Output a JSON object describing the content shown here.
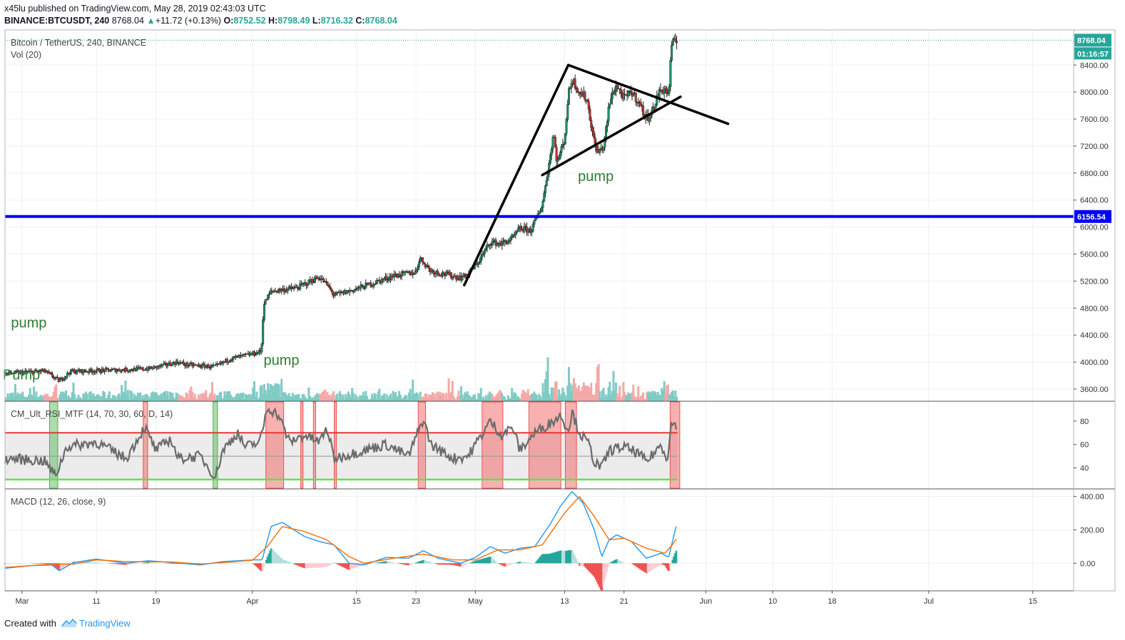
{
  "header": {
    "author": "x45lu",
    "published_text": "published on TradingView.com, May 28, 2019 02:43:03 UTC",
    "symbol_line": "BINANCE:BTCUSDT, 240",
    "last": "8768.04",
    "change": "+11.72 (+0.13%)",
    "o_label": "O:",
    "o_value": "8752.52",
    "h_label": "H:",
    "h_value": "8798.49",
    "l_label": "L:",
    "l_value": "8716.32",
    "c_label": "C:",
    "c_value": "8768.04"
  },
  "footer": {
    "created_with": "Created with",
    "logo_text": "TradingView"
  },
  "chart_data": {
    "type": "candlestick",
    "title": "Bitcoin / TetherUS, 240, BINANCE",
    "volume_label": "Vol (20)",
    "price_axis": {
      "ticks": [
        3600,
        4000,
        4400,
        4800,
        5200,
        5600,
        6000,
        6400,
        6800,
        7200,
        7600,
        8000,
        8400
      ],
      "tick_labels": [
        "3600.00",
        "4000.00",
        "4400.00",
        "4800.00",
        "5200.00",
        "5600.00",
        "6000.00",
        "6400.00",
        "6800.00",
        "7200.00",
        "7600.00",
        "8000.00",
        "8400.00"
      ],
      "range": [
        3420,
        8920
      ]
    },
    "last_price": {
      "label": "8768.04",
      "value": 8768.04,
      "countdown": "01:16:57",
      "color": "#26a69a"
    },
    "horizontal_line": {
      "value": 6156.54,
      "label": "6156.54",
      "color": "#0000ff"
    },
    "time_axis": {
      "ticks": [
        {
          "label": "Mar",
          "day": 0
        },
        {
          "label": "11",
          "day": 10
        },
        {
          "label": "19",
          "day": 18
        },
        {
          "label": "Apr",
          "day": 31
        },
        {
          "label": "15",
          "day": 45
        },
        {
          "label": "23",
          "day": 53
        },
        {
          "label": "May",
          "day": 61
        },
        {
          "label": "13",
          "day": 73
        },
        {
          "label": "21",
          "day": 81
        },
        {
          "label": "Jun",
          "day": 92
        },
        {
          "label": "10",
          "day": 101
        },
        {
          "label": "18",
          "day": 109
        },
        {
          "label": "Jul",
          "day": 122
        },
        {
          "label": "15",
          "day": 136
        }
      ],
      "range_days": [
        -2.3,
        141.5
      ]
    },
    "candle_interval": "4h",
    "key_prices": [
      {
        "day": -2.3,
        "price": 3830
      },
      {
        "day": 3,
        "price": 3870
      },
      {
        "day": 5,
        "price": 3720
      },
      {
        "day": 6.5,
        "price": 3860
      },
      {
        "day": 12,
        "price": 3880
      },
      {
        "day": 17,
        "price": 3900
      },
      {
        "day": 21,
        "price": 4000
      },
      {
        "day": 22,
        "price": 3960
      },
      {
        "day": 26,
        "price": 3930
      },
      {
        "day": 28,
        "price": 4050
      },
      {
        "day": 31,
        "price": 4120
      },
      {
        "day": 32.2,
        "price": 4160
      },
      {
        "day": 32.5,
        "price": 4850
      },
      {
        "day": 33.5,
        "price": 5050
      },
      {
        "day": 37,
        "price": 5100
      },
      {
        "day": 40,
        "price": 5260
      },
      {
        "day": 41,
        "price": 5150
      },
      {
        "day": 42,
        "price": 4990
      },
      {
        "day": 44,
        "price": 5050
      },
      {
        "day": 47,
        "price": 5160
      },
      {
        "day": 50,
        "price": 5280
      },
      {
        "day": 53,
        "price": 5330
      },
      {
        "day": 53.5,
        "price": 5550
      },
      {
        "day": 55,
        "price": 5350
      },
      {
        "day": 57,
        "price": 5300
      },
      {
        "day": 59,
        "price": 5250
      },
      {
        "day": 60,
        "price": 5300
      },
      {
        "day": 61.5,
        "price": 5500
      },
      {
        "day": 63,
        "price": 5780
      },
      {
        "day": 64.5,
        "price": 5750
      },
      {
        "day": 66,
        "price": 5830
      },
      {
        "day": 67,
        "price": 5980
      },
      {
        "day": 68.5,
        "price": 5950
      },
      {
        "day": 69.5,
        "price": 6200
      },
      {
        "day": 70,
        "price": 6330
      },
      {
        "day": 71,
        "price": 7000
      },
      {
        "day": 71.5,
        "price": 7400
      },
      {
        "day": 72,
        "price": 6950
      },
      {
        "day": 73,
        "price": 7300
      },
      {
        "day": 73.5,
        "price": 7950
      },
      {
        "day": 74,
        "price": 8200
      },
      {
        "day": 75,
        "price": 8000
      },
      {
        "day": 76,
        "price": 7900
      },
      {
        "day": 77,
        "price": 7250
      },
      {
        "day": 77.5,
        "price": 7100
      },
      {
        "day": 78.3,
        "price": 7200
      },
      {
        "day": 79,
        "price": 7800
      },
      {
        "day": 79.5,
        "price": 8000
      },
      {
        "day": 80,
        "price": 8100
      },
      {
        "day": 81,
        "price": 7900
      },
      {
        "day": 82,
        "price": 8000
      },
      {
        "day": 83,
        "price": 7850
      },
      {
        "day": 84,
        "price": 7600
      },
      {
        "day": 85,
        "price": 7750
      },
      {
        "day": 85.7,
        "price": 8000
      },
      {
        "day": 86.5,
        "price": 8050
      },
      {
        "day": 87,
        "price": 7950
      },
      {
        "day": 87.4,
        "price": 8700
      },
      {
        "day": 88.2,
        "price": 8768
      }
    ],
    "annotations": [
      {
        "text": "pump",
        "day": -1.5,
        "price": 4510
      },
      {
        "text": "Pump",
        "day": -2.6,
        "price": 3740
      },
      {
        "text": "pump",
        "day": 32.5,
        "price": 3960
      },
      {
        "text": "pump",
        "day": 74.8,
        "price": 6680
      }
    ],
    "trendlines": [
      {
        "from": {
          "day": 59.5,
          "price": 5140
        },
        "to": {
          "day": 73.5,
          "price": 8400
        }
      },
      {
        "from": {
          "day": 73.5,
          "price": 8400
        },
        "to": {
          "day": 95,
          "price": 7530
        }
      },
      {
        "from": {
          "day": 70,
          "price": 6770
        },
        "to": {
          "day": 88.6,
          "price": 7930
        }
      }
    ],
    "rsi": {
      "label": "CM_Ult_RSI_MTF (14, 70, 30, 60, D, 14)",
      "range": [
        22,
        97
      ],
      "ticks": [
        40,
        60,
        80
      ],
      "tick_labels": [
        "40",
        "60",
        "80"
      ],
      "overbought": 70,
      "oversold": 30,
      "midline": 50,
      "key_values": [
        {
          "day": -2.3,
          "v": 48
        },
        {
          "day": 3,
          "v": 46
        },
        {
          "day": 4.5,
          "v": 33
        },
        {
          "day": 6,
          "v": 58
        },
        {
          "day": 10,
          "v": 62
        },
        {
          "day": 14,
          "v": 48
        },
        {
          "day": 16.5,
          "v": 75
        },
        {
          "day": 18,
          "v": 55
        },
        {
          "day": 20,
          "v": 65
        },
        {
          "day": 21,
          "v": 48
        },
        {
          "day": 24,
          "v": 50
        },
        {
          "day": 26,
          "v": 32
        },
        {
          "day": 27,
          "v": 55
        },
        {
          "day": 29,
          "v": 70
        },
        {
          "day": 30,
          "v": 58
        },
        {
          "day": 32,
          "v": 62
        },
        {
          "day": 33,
          "v": 92
        },
        {
          "day": 34.5,
          "v": 85
        },
        {
          "day": 36,
          "v": 62
        },
        {
          "day": 38,
          "v": 68
        },
        {
          "day": 40,
          "v": 62
        },
        {
          "day": 41,
          "v": 74
        },
        {
          "day": 42,
          "v": 48
        },
        {
          "day": 46,
          "v": 55
        },
        {
          "day": 49,
          "v": 60
        },
        {
          "day": 52,
          "v": 50
        },
        {
          "day": 54,
          "v": 82
        },
        {
          "day": 55,
          "v": 60
        },
        {
          "day": 58,
          "v": 48
        },
        {
          "day": 60,
          "v": 50
        },
        {
          "day": 62,
          "v": 70
        },
        {
          "day": 63,
          "v": 80
        },
        {
          "day": 64.5,
          "v": 68
        },
        {
          "day": 66,
          "v": 75
        },
        {
          "day": 67,
          "v": 55
        },
        {
          "day": 69,
          "v": 70
        },
        {
          "day": 71,
          "v": 78
        },
        {
          "day": 72.5,
          "v": 85
        },
        {
          "day": 73.5,
          "v": 72
        },
        {
          "day": 74,
          "v": 88
        },
        {
          "day": 75,
          "v": 70
        },
        {
          "day": 76.3,
          "v": 60
        },
        {
          "day": 77,
          "v": 45
        },
        {
          "day": 78,
          "v": 40
        },
        {
          "day": 79,
          "v": 55
        },
        {
          "day": 81,
          "v": 58
        },
        {
          "day": 83,
          "v": 52
        },
        {
          "day": 84,
          "v": 45
        },
        {
          "day": 86,
          "v": 60
        },
        {
          "day": 86.8,
          "v": 48
        },
        {
          "day": 87.4,
          "v": 78
        },
        {
          "day": 88.2,
          "v": 77
        }
      ],
      "overbought_zones": [
        [
          16.3,
          16.9
        ],
        [
          32.8,
          35.2
        ],
        [
          37.5,
          37.8
        ],
        [
          39.2,
          39.5
        ],
        [
          42.0,
          42.3
        ],
        [
          53.3,
          54.3
        ],
        [
          61.9,
          64.7
        ],
        [
          68.2,
          72.5
        ],
        [
          73.1,
          74.6
        ],
        [
          87.2,
          88.5
        ]
      ],
      "oversold_zones": [
        [
          3.7,
          4.8
        ],
        [
          25.7,
          26.3
        ]
      ],
      "colors": {
        "overbought": "#ef5350",
        "oversold": "#4caf50",
        "line": "#6b6b6b",
        "band": "#dcdcdc"
      }
    },
    "macd": {
      "label": "MACD (12, 26, close, 9)",
      "range": [
        -165,
        445
      ],
      "ticks": [
        0,
        200,
        400
      ],
      "tick_labels": [
        "0.00",
        "200.00",
        "400.00"
      ],
      "macd_key": [
        {
          "day": -2.3,
          "v": -30
        },
        {
          "day": 1,
          "v": -15
        },
        {
          "day": 4,
          "v": -10
        },
        {
          "day": 5,
          "v": -45
        },
        {
          "day": 7,
          "v": 5
        },
        {
          "day": 10,
          "v": 25
        },
        {
          "day": 14,
          "v": 0
        },
        {
          "day": 17,
          "v": 15
        },
        {
          "day": 20,
          "v": 5
        },
        {
          "day": 24,
          "v": -10
        },
        {
          "day": 27,
          "v": 10
        },
        {
          "day": 31,
          "v": 20
        },
        {
          "day": 32.3,
          "v": 20
        },
        {
          "day": 33.5,
          "v": 220
        },
        {
          "day": 35,
          "v": 245
        },
        {
          "day": 38,
          "v": 160
        },
        {
          "day": 40,
          "v": 130
        },
        {
          "day": 42,
          "v": 110
        },
        {
          "day": 44,
          "v": 0
        },
        {
          "day": 46,
          "v": -10
        },
        {
          "day": 49,
          "v": 35
        },
        {
          "day": 52,
          "v": 30
        },
        {
          "day": 54,
          "v": 75
        },
        {
          "day": 56,
          "v": 30
        },
        {
          "day": 59,
          "v": 0
        },
        {
          "day": 61,
          "v": 35
        },
        {
          "day": 63,
          "v": 100
        },
        {
          "day": 65,
          "v": 60
        },
        {
          "day": 67,
          "v": 90
        },
        {
          "day": 69,
          "v": 100
        },
        {
          "day": 71,
          "v": 230
        },
        {
          "day": 72.5,
          "v": 345
        },
        {
          "day": 74,
          "v": 430
        },
        {
          "day": 75.5,
          "v": 360
        },
        {
          "day": 77,
          "v": 200
        },
        {
          "day": 78,
          "v": 40
        },
        {
          "day": 79,
          "v": 140
        },
        {
          "day": 80,
          "v": 170
        },
        {
          "day": 82,
          "v": 130
        },
        {
          "day": 84,
          "v": 30
        },
        {
          "day": 86,
          "v": 60
        },
        {
          "day": 87,
          "v": 35
        },
        {
          "day": 88,
          "v": 220
        },
        {
          "day": 88.6,
          "v": 240
        }
      ],
      "signal_key": [
        {
          "day": -2.3,
          "v": -25
        },
        {
          "day": 4,
          "v": -5
        },
        {
          "day": 7,
          "v": -5
        },
        {
          "day": 10,
          "v": 20
        },
        {
          "day": 14,
          "v": 10
        },
        {
          "day": 20,
          "v": 8
        },
        {
          "day": 24,
          "v": -5
        },
        {
          "day": 31,
          "v": 18
        },
        {
          "day": 33,
          "v": 100
        },
        {
          "day": 35,
          "v": 220
        },
        {
          "day": 38,
          "v": 190
        },
        {
          "day": 41,
          "v": 140
        },
        {
          "day": 44,
          "v": 40
        },
        {
          "day": 46,
          "v": 0
        },
        {
          "day": 50,
          "v": 30
        },
        {
          "day": 54,
          "v": 55
        },
        {
          "day": 58,
          "v": 20
        },
        {
          "day": 61,
          "v": 20
        },
        {
          "day": 64,
          "v": 80
        },
        {
          "day": 67,
          "v": 80
        },
        {
          "day": 70,
          "v": 110
        },
        {
          "day": 73,
          "v": 300
        },
        {
          "day": 75,
          "v": 400
        },
        {
          "day": 77,
          "v": 280
        },
        {
          "day": 79,
          "v": 140
        },
        {
          "day": 81,
          "v": 150
        },
        {
          "day": 84,
          "v": 90
        },
        {
          "day": 86.5,
          "v": 60
        },
        {
          "day": 87.5,
          "v": 110
        },
        {
          "day": 88.6,
          "v": 185
        }
      ],
      "colors": {
        "macd": "#2196f3",
        "signal": "#ff6d00",
        "hist_pos_strong": "#26a69a",
        "hist_pos_weak": "#b2dfdb",
        "hist_neg_strong": "#ef5350",
        "hist_neg_weak": "#ffcdd2"
      }
    }
  }
}
